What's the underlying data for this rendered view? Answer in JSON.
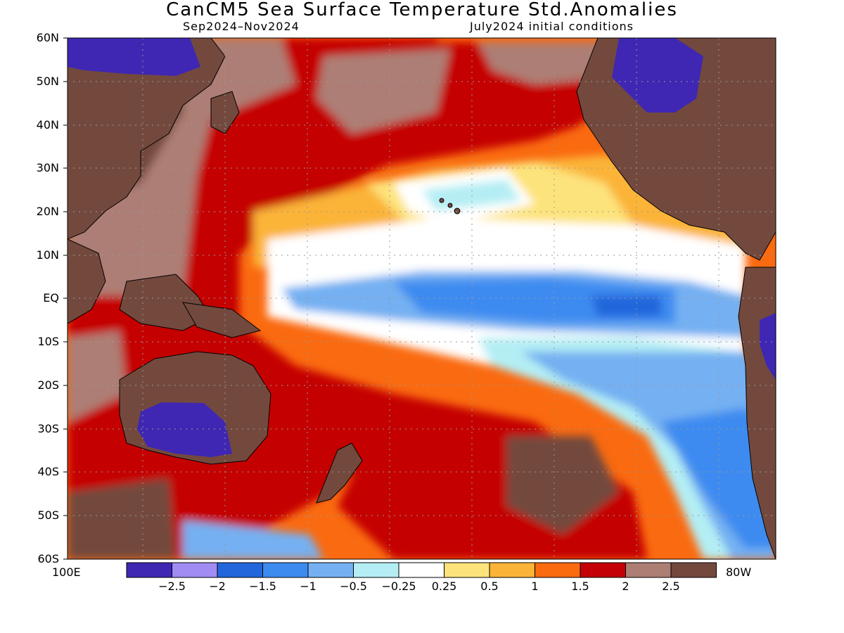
{
  "title": "CanCM5 Sea Surface Temperature Std.Anomalies",
  "subtitle_left": "Sep2024–Nov2024",
  "subtitle_right": "July2024 initial conditions",
  "lat_labels": [
    "60N",
    "50N",
    "40N",
    "30N",
    "20N",
    "10N",
    "EQ",
    "10S",
    "20S",
    "30S",
    "40S",
    "50S",
    "60S"
  ],
  "lon_labels": {
    "left": "100E",
    "right": "80W"
  },
  "colorbar": {
    "colors": [
      "#3f27b3",
      "#a08cf3",
      "#2366db",
      "#3e8bf0",
      "#75b0f2",
      "#b4eef4",
      "#ffffff",
      "#fde37b",
      "#fbb437",
      "#fa6a10",
      "#c40006",
      "#ad7e74",
      "#73493e"
    ],
    "labels": [
      "−2.5",
      "−2",
      "−1.5",
      "−1",
      "−0.5",
      "−0.25",
      "0.25",
      "0.5",
      "1",
      "1.5",
      "2",
      "2.5"
    ]
  },
  "colors": {
    "land": "#73493e",
    "background": "#ffffff"
  }
}
